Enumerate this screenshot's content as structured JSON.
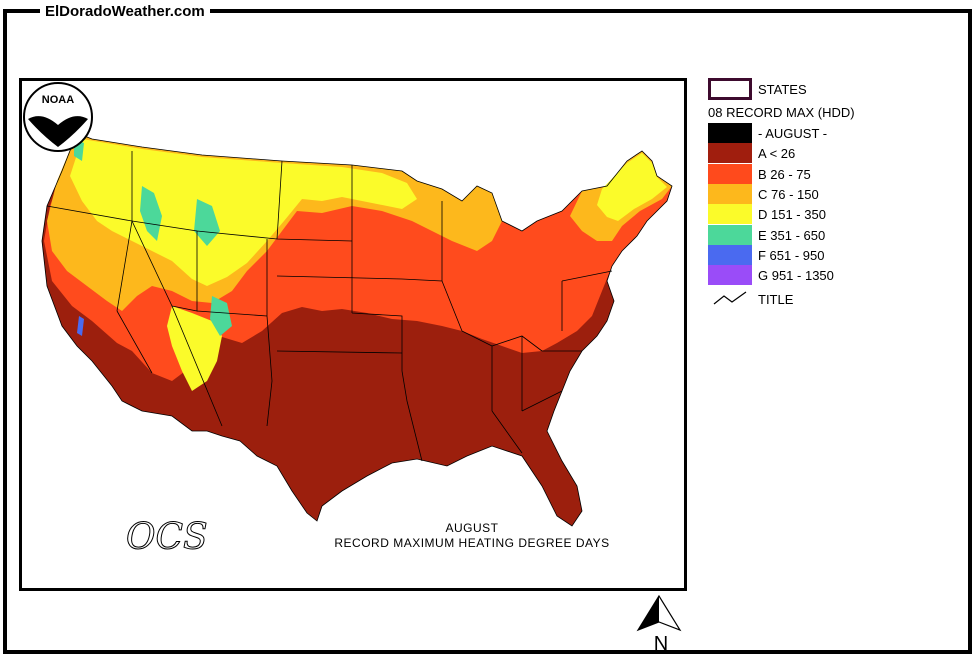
{
  "site": {
    "title": "ElDoradoWeather.com"
  },
  "map": {
    "caption_line1": "AUGUST",
    "caption_line2": "RECORD MAXIMUM HEATING DEGREE DAYS",
    "logo_text": "NOAA",
    "ocs_text": "OCS"
  },
  "legend": {
    "states_label": "STATES",
    "heading": "08 RECORD MAX (HDD)",
    "items": [
      {
        "label": "- AUGUST -",
        "color": "#000000"
      },
      {
        "label": "A < 26",
        "color": "#a01e0e"
      },
      {
        "label": "B 26 - 75",
        "color": "#ff4a1c"
      },
      {
        "label": "C 76 - 150",
        "color": "#fdb81c"
      },
      {
        "label": "D 151 - 350",
        "color": "#fbfb2a"
      },
      {
        "label": "E 351 - 650",
        "color": "#4cd89a"
      },
      {
        "label": "F 651 - 950",
        "color": "#4a6af0"
      },
      {
        "label": "G 951 - 1350",
        "color": "#9a4cf8"
      }
    ],
    "title_label": "TITLE"
  },
  "compass": {
    "label": "N"
  }
}
